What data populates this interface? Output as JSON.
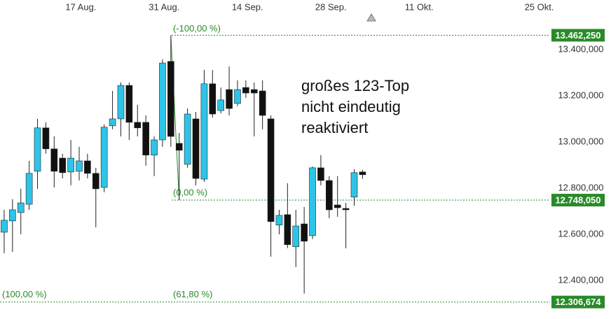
{
  "chart_data": {
    "type": "candlestick",
    "annotation": [
      "großes 123-Top",
      "nicht eindeutig",
      "reaktiviert"
    ],
    "up_color": "#2ec4e8",
    "down_color": "#111111",
    "level_color": "#2a8a2a",
    "xlim": [
      -0.5,
      65.5
    ],
    "xticks": [
      {
        "value": 9.2,
        "label": "17 Aug."
      },
      {
        "value": 19.2,
        "label": "31 Aug."
      },
      {
        "value": 29.2,
        "label": "14 Sep."
      },
      {
        "value": 39.2,
        "label": "28 Sep."
      },
      {
        "value": 49.8,
        "label": "11 Okt."
      },
      {
        "value": 64.2,
        "label": "25 Okt."
      }
    ],
    "ylim": [
      12233,
      13615
    ],
    "yticks": [
      {
        "value": 12400,
        "label": "12.400,000"
      },
      {
        "value": 12600,
        "label": "12.600,000"
      },
      {
        "value": 12800,
        "label": "12.800,000"
      },
      {
        "value": 13000,
        "label": "13.000,000"
      },
      {
        "value": 13200,
        "label": "13.200,000"
      },
      {
        "value": 13400,
        "label": "13.400,000"
      }
    ],
    "levels": [
      {
        "value": 13462.25,
        "label": "13.462,250",
        "notes": [
          "(-100,00 %)"
        ]
      },
      {
        "value": 12748.05,
        "label": "12.748,050",
        "notes": [
          "(0,00 %)"
        ]
      },
      {
        "value": 12306.674,
        "label": "12.306,674",
        "notes": [
          "(100,00 %)",
          "(61,80 %)"
        ]
      }
    ],
    "open": [
      12609,
      12658,
      12694,
      12730,
      12873,
      13061,
      12970,
      12930,
      12870,
      12873,
      12918,
      12864,
      12803,
      13070,
      13100,
      13245,
      13085,
      13085,
      12943,
      13009,
      13349,
      12994,
      12903,
      13100,
      12839,
      13252,
      13136,
      13227,
      13167,
      13236,
      13227,
      13221,
      13100,
      12640,
      12685,
      12546,
      12645,
      12594,
      12888,
      12833,
      12727,
      12712,
      12761,
      12870
    ],
    "high": [
      12706,
      12752,
      12797,
      12918,
      13100,
      13085,
      13024,
      12949,
      13009,
      12979,
      12949,
      12888,
      13076,
      13221,
      13258,
      13258,
      13161,
      13115,
      13024,
      13358,
      13462,
      13039,
      13145,
      13130,
      13312,
      13312,
      13236,
      13327,
      13267,
      13267,
      13258,
      13267,
      13115,
      12706,
      12821,
      12706,
      12718,
      12894,
      12943,
      12852,
      12852,
      12736,
      12882,
      12879
    ],
    "low": [
      12518,
      12524,
      12600,
      12706,
      12797,
      12949,
      12803,
      12842,
      12812,
      12833,
      12842,
      12630,
      12782,
      13055,
      13024,
      13009,
      13024,
      12897,
      12852,
      12979,
      12979,
      12748,
      12888,
      12812,
      12827,
      13106,
      13124,
      13115,
      13155,
      13191,
      13024,
      13055,
      12503,
      12600,
      12540,
      12458,
      12343,
      12579,
      12812,
      12670,
      12676,
      12539,
      12724,
      12840
    ],
    "close": [
      12661,
      12706,
      12736,
      12864,
      13061,
      12970,
      12873,
      12867,
      12930,
      12918,
      12864,
      12797,
      13064,
      13100,
      13245,
      13085,
      13061,
      12943,
      13009,
      13342,
      13024,
      12964,
      13121,
      12842,
      13252,
      13121,
      13182,
      13145,
      13227,
      13212,
      13212,
      13115,
      12655,
      12682,
      12555,
      12636,
      12570,
      12888,
      12833,
      12706,
      12715,
      12706,
      12867,
      12858
    ]
  }
}
